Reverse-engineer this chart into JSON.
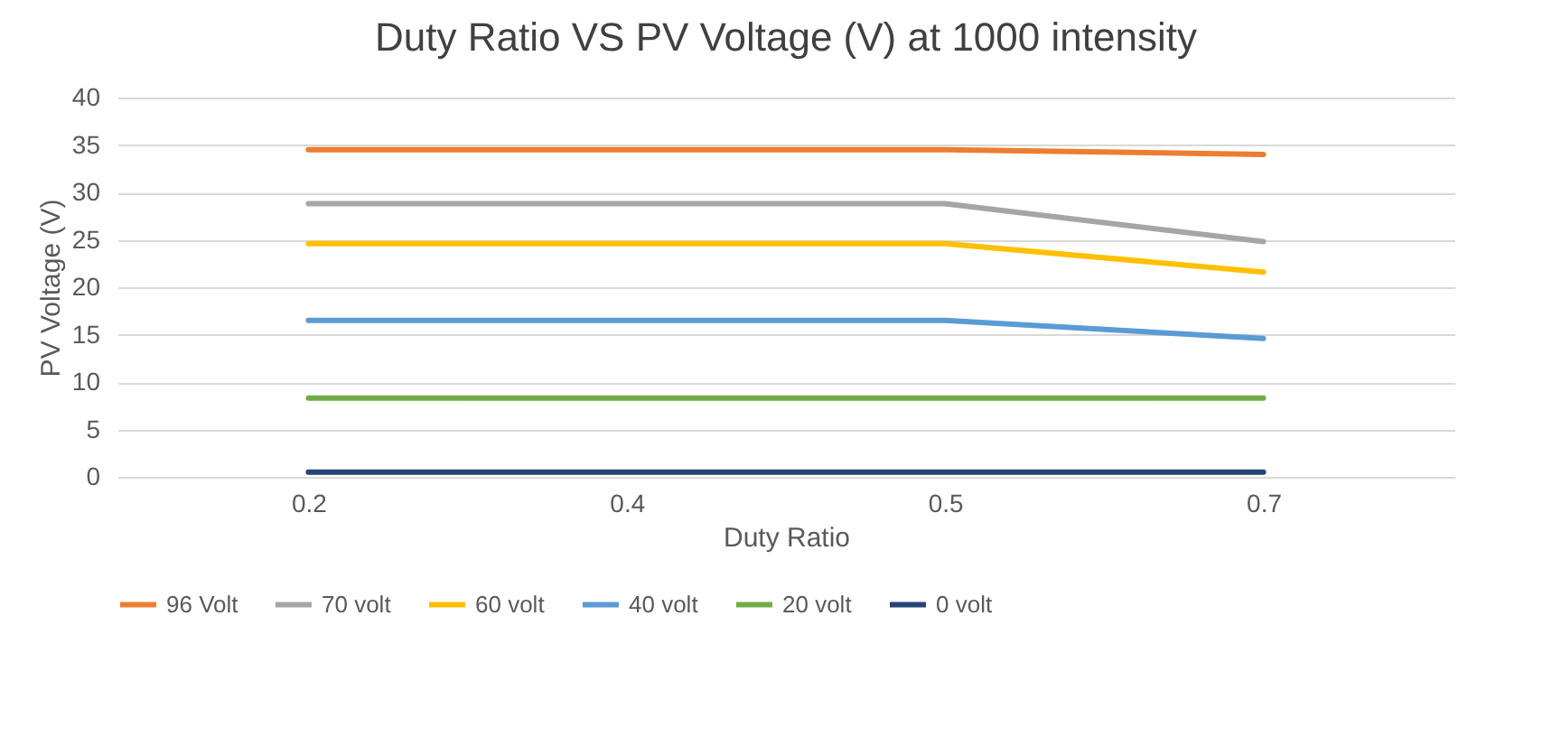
{
  "chart_data": {
    "type": "line",
    "title": "Duty Ratio VS PV Voltage (V) at 1000 intensity",
    "xlabel": "Duty Ratio",
    "ylabel": "PV Voltage (V)",
    "categories": [
      "0.2",
      "0.4",
      "0.5",
      "0.7"
    ],
    "series": [
      {
        "name": "96 Volt",
        "color": "#ed7d31",
        "values": [
          34.5,
          34.5,
          34.5,
          34
        ]
      },
      {
        "name": "70 volt",
        "color": "#a5a5a5",
        "values": [
          28.8,
          28.8,
          28.8,
          24.8
        ]
      },
      {
        "name": "60 volt",
        "color": "#ffc000",
        "values": [
          24.6,
          24.6,
          24.6,
          21.6
        ]
      },
      {
        "name": "40 volt",
        "color": "#5b9bd5",
        "values": [
          16.5,
          16.5,
          16.5,
          14.6
        ]
      },
      {
        "name": "20 volt",
        "color": "#70ad47",
        "values": [
          8.3,
          8.3,
          8.3,
          8.3
        ]
      },
      {
        "name": "0 volt",
        "color": "#264478",
        "values": [
          0.5,
          0.5,
          0.5,
          0.5
        ]
      }
    ],
    "ylim": [
      0,
      40
    ],
    "yticks": [
      0,
      5,
      10,
      15,
      20,
      25,
      30,
      35,
      40
    ],
    "grid": "y",
    "legend": "bottom",
    "marker": "none",
    "line_style": "solid"
  }
}
